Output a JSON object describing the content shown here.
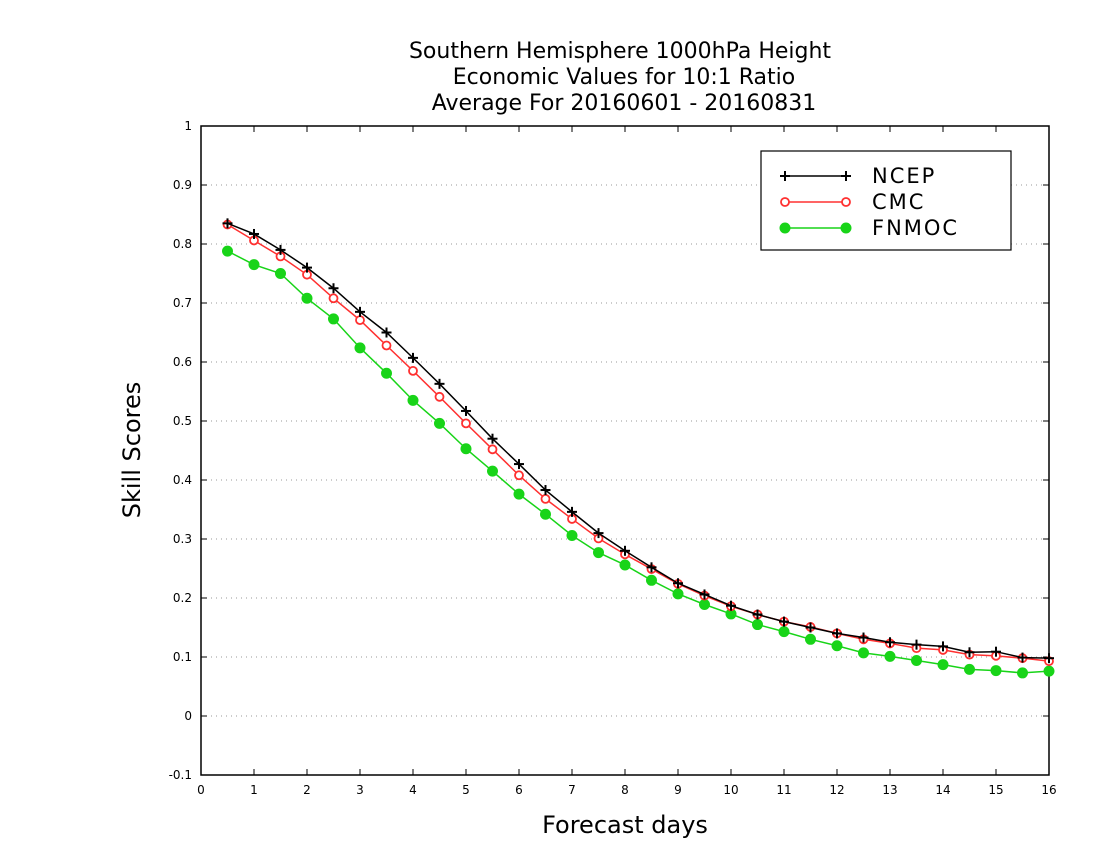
{
  "chart_data": {
    "type": "line",
    "title": [
      "Southern Hemisphere 1000hPa Height",
      "Economic Values for 10:1 Ratio",
      "Average For 20160601 - 20160831"
    ],
    "xlabel": "Forecast days",
    "ylabel": "Skill Scores",
    "xlim": [
      0,
      16
    ],
    "ylim": [
      -0.1,
      1
    ],
    "xticks": [
      "0",
      "1",
      "2",
      "3",
      "4",
      "5",
      "6",
      "7",
      "8",
      "9",
      "10",
      "11",
      "12",
      "13",
      "14",
      "15",
      "16"
    ],
    "yticks": [
      "-0.1",
      "0",
      "0.1",
      "0.2",
      "0.3",
      "0.4",
      "0.5",
      "0.6",
      "0.7",
      "0.8",
      "0.9",
      "1"
    ],
    "grid": true,
    "legend_position": "top-right",
    "x": [
      0.5,
      1,
      1.5,
      2,
      2.5,
      3,
      3.5,
      4,
      4.5,
      5,
      5.5,
      6,
      6.5,
      7,
      7.5,
      8,
      8.5,
      9,
      9.5,
      10,
      10.5,
      11,
      11.5,
      12,
      12.5,
      13,
      13.5,
      14,
      14.5,
      15,
      15.5,
      16
    ],
    "series": [
      {
        "name": "NCEP",
        "color": "#000000",
        "marker": "plus",
        "values": [
          0.835,
          0.817,
          0.79,
          0.76,
          0.725,
          0.685,
          0.65,
          0.607,
          0.563,
          0.517,
          0.47,
          0.427,
          0.383,
          0.346,
          0.31,
          0.28,
          0.252,
          0.225,
          0.206,
          0.187,
          0.172,
          0.16,
          0.15,
          0.14,
          0.133,
          0.125,
          0.121,
          0.118,
          0.108,
          0.109,
          0.099,
          0.098
        ]
      },
      {
        "name": "CMC",
        "color": "#ff3030",
        "marker": "open-circle",
        "values": [
          0.833,
          0.806,
          0.779,
          0.748,
          0.708,
          0.671,
          0.628,
          0.585,
          0.541,
          0.496,
          0.452,
          0.408,
          0.368,
          0.334,
          0.301,
          0.274,
          0.249,
          0.224,
          0.204,
          0.186,
          0.172,
          0.16,
          0.151,
          0.14,
          0.13,
          0.123,
          0.115,
          0.112,
          0.104,
          0.102,
          0.098,
          0.093
        ]
      },
      {
        "name": "FNMOC",
        "color": "#18d418",
        "marker": "filled-circle",
        "values": [
          0.788,
          0.765,
          0.75,
          0.708,
          0.673,
          0.624,
          0.581,
          0.535,
          0.496,
          0.453,
          0.415,
          0.376,
          0.342,
          0.306,
          0.277,
          0.256,
          0.23,
          0.207,
          0.189,
          0.173,
          0.155,
          0.143,
          0.13,
          0.119,
          0.107,
          0.101,
          0.094,
          0.087,
          0.079,
          0.077,
          0.073,
          0.076
        ]
      }
    ]
  }
}
